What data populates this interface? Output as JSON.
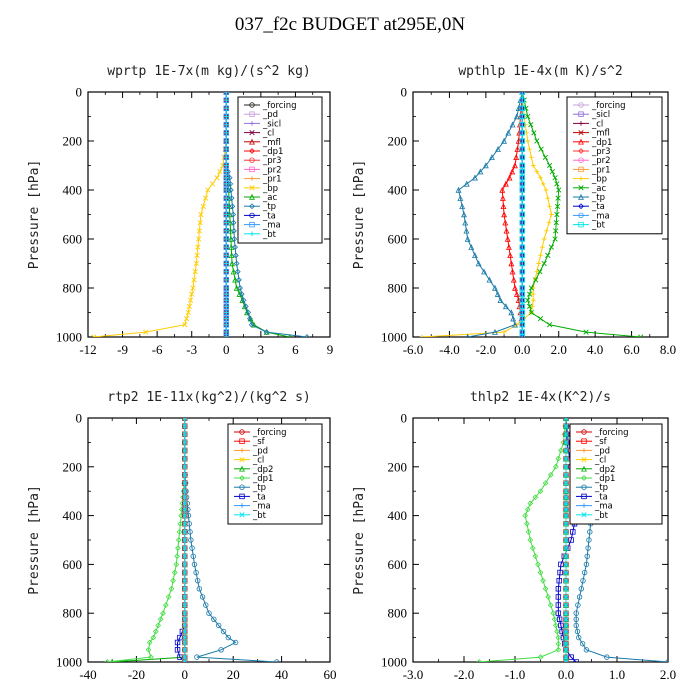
{
  "figure_title": "037_f2c  BUDGET at295E,0N",
  "chart_data": [
    {
      "type": "line",
      "title": "wprtp   1E-7x(m kg)/(s^2 kg)",
      "ylabel": "Pressure [hPa]",
      "xlim": [
        -12,
        9
      ],
      "ylim": [
        0,
        1000
      ],
      "y_inverted": true,
      "xticks": [
        "-12",
        "-9",
        "-6",
        "-3",
        "0",
        "3",
        "6",
        "9"
      ],
      "yticks": [
        "0",
        "200",
        "400",
        "600",
        "800",
        "1000"
      ],
      "legend_position": "top-right",
      "y": [
        0,
        100,
        200,
        300,
        350,
        400,
        500,
        600,
        700,
        800,
        850,
        900,
        950,
        980,
        1000
      ],
      "series": [
        {
          "name": "_forcing",
          "color": "#202020",
          "x": [
            0,
            0,
            0,
            0,
            0,
            0,
            0,
            0,
            0,
            0,
            0,
            0,
            0,
            0,
            0
          ]
        },
        {
          "name": "_pd",
          "color": "#c9a0dc",
          "x": [
            0,
            0,
            0,
            0,
            0,
            0,
            0,
            0,
            0,
            0,
            0,
            0,
            0,
            0,
            0
          ]
        },
        {
          "name": "_sicl",
          "color": "#9370db",
          "x": [
            0,
            0,
            0,
            0,
            0,
            0,
            0,
            0,
            0,
            0,
            0,
            0,
            0,
            0,
            0
          ]
        },
        {
          "name": "_cl",
          "color": "#800040",
          "x": [
            0,
            0,
            0,
            0,
            0,
            0,
            0,
            0,
            0,
            0,
            0,
            0,
            0,
            0,
            0
          ]
        },
        {
          "name": "_mfl",
          "color": "#c00000",
          "x": [
            0,
            0,
            0,
            0,
            0,
            0,
            0,
            0,
            0,
            0,
            0,
            0,
            0,
            0,
            0
          ]
        },
        {
          "name": "_dp1",
          "color": "#ff0000",
          "x": [
            0,
            0,
            0,
            0,
            0,
            0,
            0,
            0,
            0,
            0,
            0,
            0,
            0,
            0,
            0
          ]
        },
        {
          "name": "_pr3",
          "color": "#ff3333",
          "x": [
            0,
            0,
            0,
            0,
            0,
            0,
            0,
            0,
            0,
            0,
            0,
            0,
            0,
            0,
            0
          ]
        },
        {
          "name": "_pr2",
          "color": "#ff66cc",
          "x": [
            0,
            0,
            0,
            0,
            0,
            0,
            0,
            0,
            0,
            0,
            0,
            0,
            0,
            0,
            0
          ]
        },
        {
          "name": "_pr1",
          "color": "#ff9933",
          "x": [
            0,
            0,
            0,
            0,
            0,
            0,
            0,
            0,
            0,
            0,
            0,
            0,
            0,
            0,
            0
          ]
        },
        {
          "name": "_bp",
          "color": "#ffcc00",
          "x": [
            0,
            0,
            0,
            -0.3,
            -0.8,
            -1.6,
            -2.2,
            -2.4,
            -2.6,
            -2.9,
            -3.1,
            -3.3,
            -3.6,
            -7,
            -11.5
          ]
        },
        {
          "name": "_ac",
          "color": "#00aa00",
          "x": [
            0,
            0,
            0,
            0,
            0.1,
            0.2,
            0.3,
            0.4,
            0.5,
            0.9,
            1.4,
            1.8,
            2.4,
            3.5,
            5.5
          ]
        },
        {
          "name": "_tp",
          "color": "#1a7aa8",
          "x": [
            0,
            0,
            0,
            0,
            0.3,
            0.4,
            0.6,
            0.7,
            0.9,
            1.2,
            1.5,
            1.9,
            2.2,
            3.5,
            7
          ]
        },
        {
          "name": "_ta",
          "color": "#0000cc",
          "x": [
            0,
            0,
            0,
            0,
            0,
            0,
            0,
            0,
            0,
            0,
            0,
            0,
            0,
            0,
            0
          ]
        },
        {
          "name": "_ma",
          "color": "#3399ff",
          "x": [
            0,
            0,
            0,
            0,
            0,
            0,
            0,
            0,
            0,
            0,
            0,
            0,
            0,
            0,
            0
          ]
        },
        {
          "name": "_bt",
          "color": "#00e5ee",
          "x": [
            0,
            0,
            0,
            0,
            0,
            0,
            0,
            0,
            0,
            0,
            0,
            0,
            0,
            0,
            0
          ]
        }
      ]
    },
    {
      "type": "line",
      "title": "wpthlp   1E-4x(m K)/s^2",
      "ylabel": "Pressure [hPa]",
      "xlim": [
        -6,
        8
      ],
      "ylim": [
        0,
        1000
      ],
      "y_inverted": true,
      "xticks": [
        "-6.0",
        "-4.0",
        "-2.0",
        "0.0",
        "2.0",
        "4.0",
        "6.0",
        "8.0"
      ],
      "yticks": [
        "0",
        "200",
        "400",
        "600",
        "800",
        "1000"
      ],
      "legend_position": "top-right",
      "y": [
        0,
        100,
        200,
        300,
        350,
        400,
        500,
        600,
        700,
        800,
        850,
        900,
        950,
        980,
        1000
      ],
      "series": [
        {
          "name": "_forcing",
          "color": "#c9a0dc",
          "x": [
            0,
            0,
            0,
            0,
            0,
            0,
            0,
            0,
            0,
            0,
            0,
            0,
            0,
            0,
            0
          ]
        },
        {
          "name": "_sicl",
          "color": "#9370db",
          "x": [
            0,
            0,
            0,
            0,
            0,
            0,
            0,
            0,
            0,
            0,
            0,
            0,
            0,
            0,
            0
          ]
        },
        {
          "name": "_cl",
          "color": "#800040",
          "x": [
            0,
            0,
            0,
            0,
            0,
            0,
            0,
            0,
            0,
            0,
            0,
            0,
            0,
            0,
            0
          ]
        },
        {
          "name": "_mfl",
          "color": "#c00000",
          "x": [
            0,
            0,
            0,
            0,
            0,
            0,
            0,
            0,
            0,
            0,
            0,
            0,
            0,
            0,
            0
          ]
        },
        {
          "name": "_dp1",
          "color": "#ff0000",
          "x": [
            0,
            -0.1,
            -0.2,
            -0.4,
            -0.7,
            -1.1,
            -1.0,
            -0.8,
            -0.6,
            -0.4,
            -0.2,
            -0.1,
            0,
            0,
            0
          ]
        },
        {
          "name": "_pr3",
          "color": "#ff3333",
          "x": [
            0,
            0,
            0,
            0,
            0,
            0,
            0,
            0,
            0,
            0,
            0,
            0,
            0,
            0,
            0
          ]
        },
        {
          "name": "_pr2",
          "color": "#ff66cc",
          "x": [
            0,
            0,
            0,
            0,
            0,
            0,
            0,
            0,
            0,
            0,
            0,
            0,
            0,
            0,
            0
          ]
        },
        {
          "name": "_pr1",
          "color": "#ff9933",
          "x": [
            0,
            0,
            0,
            0,
            0,
            0,
            0,
            0,
            0,
            0,
            0,
            0,
            0,
            0,
            0
          ]
        },
        {
          "name": "_bp",
          "color": "#ffcc00",
          "x": [
            0,
            0.1,
            0.3,
            0.6,
            1.0,
            1.3,
            1.6,
            1.2,
            0.9,
            0.6,
            0.6,
            0.5,
            -0.3,
            -1.0,
            -5.5
          ]
        },
        {
          "name": "_ac",
          "color": "#00aa00",
          "x": [
            0,
            0.3,
            0.8,
            1.5,
            1.8,
            2.0,
            1.9,
            1.8,
            1.2,
            0.5,
            0.3,
            0.5,
            1.5,
            3.5,
            6.5
          ]
        },
        {
          "name": "_tp",
          "color": "#1a7aa8",
          "x": [
            0,
            -0.3,
            -1.0,
            -2.0,
            -2.6,
            -3.5,
            -3.2,
            -3.0,
            -2.4,
            -1.5,
            -1.2,
            -0.6,
            -0.4,
            -1.5,
            -3.0
          ]
        },
        {
          "name": "_ta",
          "color": "#0000cc",
          "x": [
            0,
            0,
            0,
            0,
            0,
            0,
            0,
            0,
            0,
            0,
            0,
            0,
            0,
            0,
            0
          ]
        },
        {
          "name": "_ma",
          "color": "#3399ff",
          "x": [
            0,
            0,
            0,
            0,
            0,
            0,
            0,
            0,
            0,
            0,
            0,
            0,
            0,
            0,
            0
          ]
        },
        {
          "name": "_bt",
          "color": "#00e5ee",
          "x": [
            0,
            0,
            0,
            0,
            0,
            0,
            0,
            0,
            0,
            0,
            0,
            0,
            0,
            0,
            0
          ]
        }
      ]
    },
    {
      "type": "line",
      "title": "rtp2   1E-11x(kg^2)/(kg^2 s)",
      "ylabel": "Pressure [hPa]",
      "xlim": [
        -40,
        60
      ],
      "ylim": [
        0,
        1000
      ],
      "y_inverted": true,
      "xticks": [
        "-40",
        "-20",
        "0",
        "20",
        "40",
        "60"
      ],
      "yticks": [
        "0",
        "200",
        "400",
        "600",
        "800",
        "1000"
      ],
      "legend_position": "top-right",
      "y": [
        0,
        100,
        200,
        300,
        350,
        400,
        500,
        600,
        700,
        800,
        850,
        900,
        920,
        950,
        980,
        1000
      ],
      "series": [
        {
          "name": "_forcing",
          "color": "#cc0000",
          "x": [
            0,
            0,
            0,
            0,
            0,
            0,
            0,
            0,
            0,
            0,
            0,
            0,
            0,
            0,
            0,
            0
          ]
        },
        {
          "name": "_sf",
          "color": "#ff0000",
          "x": [
            0,
            0,
            0,
            0,
            0,
            0,
            0,
            0,
            0,
            0,
            0,
            0,
            0,
            0,
            0,
            0
          ]
        },
        {
          "name": "_pd",
          "color": "#ff9933",
          "x": [
            0,
            0,
            0,
            0,
            0,
            0,
            0,
            0,
            0,
            0,
            0,
            0,
            0,
            0,
            0,
            0
          ]
        },
        {
          "name": "_cl",
          "color": "#ffcc00",
          "x": [
            0,
            0,
            0,
            0,
            0,
            0,
            0,
            0,
            0,
            0,
            0,
            0,
            0,
            0,
            0,
            0
          ]
        },
        {
          "name": "_dp2",
          "color": "#00aa00",
          "x": [
            0,
            0,
            0,
            0,
            0,
            0,
            0,
            0,
            0,
            0,
            0,
            0,
            0,
            0,
            0,
            -30
          ]
        },
        {
          "name": "_dp1",
          "color": "#44dd44",
          "x": [
            0,
            0,
            0,
            -0.5,
            -1,
            -1.5,
            -2.5,
            -3.5,
            -5.5,
            -9,
            -11,
            -13,
            -14.5,
            -15,
            -14,
            -32
          ]
        },
        {
          "name": "_tp",
          "color": "#1a7aa8",
          "x": [
            0,
            0,
            0,
            0.5,
            1,
            1.5,
            2.5,
            4,
            6,
            10,
            14,
            18,
            21,
            15,
            5,
            38
          ]
        },
        {
          "name": "_ta",
          "color": "#0000cc",
          "x": [
            0,
            0,
            0,
            0,
            0,
            0,
            0,
            0,
            0,
            0,
            0,
            -2,
            -3,
            -3,
            -2,
            0
          ]
        },
        {
          "name": "_ma",
          "color": "#3399ff",
          "x": [
            0,
            0,
            0,
            0,
            0,
            0,
            0,
            0,
            0,
            0,
            0,
            0,
            0,
            0,
            0,
            0
          ]
        },
        {
          "name": "_bt",
          "color": "#00e5ee",
          "x": [
            0,
            0,
            0,
            0,
            0,
            0,
            0,
            0,
            0,
            0,
            0,
            0,
            0,
            0,
            0,
            0
          ]
        }
      ]
    },
    {
      "type": "line",
      "title": "thlp2   1E-4x(K^2)/s",
      "ylabel": "Pressure [hPa]",
      "xlim": [
        -3,
        2
      ],
      "ylim": [
        0,
        1000
      ],
      "y_inverted": true,
      "xticks": [
        "-3.0",
        "-2.0",
        "-1.0",
        "0.0",
        "1.0",
        "2.0"
      ],
      "yticks": [
        "0",
        "200",
        "400",
        "600",
        "800",
        "1000"
      ],
      "legend_position": "top-right",
      "y": [
        0,
        100,
        200,
        300,
        350,
        400,
        500,
        600,
        700,
        800,
        850,
        900,
        950,
        980,
        1000
      ],
      "series": [
        {
          "name": "_forcing",
          "color": "#cc0000",
          "x": [
            0,
            0,
            0,
            0,
            0,
            0,
            0,
            0,
            0,
            0,
            0,
            0,
            0,
            0,
            0
          ]
        },
        {
          "name": "_sf",
          "color": "#ff0000",
          "x": [
            0,
            0,
            0,
            0,
            0,
            0,
            0,
            0,
            0,
            0,
            0,
            0,
            0,
            0,
            0
          ]
        },
        {
          "name": "_pd",
          "color": "#ff9933",
          "x": [
            0,
            0,
            0,
            0,
            0,
            0,
            0,
            0,
            0,
            0,
            0,
            0,
            0,
            0,
            0
          ]
        },
        {
          "name": "_cl",
          "color": "#ffcc00",
          "x": [
            0,
            0,
            0,
            0,
            0,
            0,
            0,
            0,
            0,
            0,
            0,
            0,
            0,
            0,
            0
          ]
        },
        {
          "name": "_dp2",
          "color": "#00aa00",
          "x": [
            0,
            0,
            0,
            0,
            0,
            0,
            0,
            0,
            0,
            0,
            0,
            0,
            0,
            0,
            0
          ]
        },
        {
          "name": "_dp1",
          "color": "#44dd44",
          "x": [
            0,
            -0.05,
            -0.2,
            -0.5,
            -0.7,
            -0.8,
            -0.7,
            -0.55,
            -0.4,
            -0.25,
            -0.2,
            -0.15,
            -0.15,
            -0.5,
            -1.7
          ]
        },
        {
          "name": "_tp",
          "color": "#1a7aa8",
          "x": [
            0,
            0.05,
            0.15,
            0.3,
            0.4,
            0.5,
            0.45,
            0.4,
            0.3,
            0.2,
            0.2,
            0.25,
            0.4,
            0.8,
            2.0
          ]
        },
        {
          "name": "_ta",
          "color": "#0000cc",
          "x": [
            0,
            0.02,
            0.1,
            0.2,
            0.25,
            0.2,
            0.1,
            -0.1,
            -0.15,
            -0.15,
            -0.1,
            -0.05,
            0,
            0.1,
            0.2
          ]
        },
        {
          "name": "_ma",
          "color": "#3399ff",
          "x": [
            0,
            0,
            0,
            0,
            0,
            0,
            0,
            0,
            0,
            0,
            0,
            0,
            0,
            0,
            0
          ]
        },
        {
          "name": "_bt",
          "color": "#00e5ee",
          "x": [
            0,
            0,
            0,
            0,
            0,
            0,
            0,
            0,
            0,
            0,
            0,
            0,
            0,
            0,
            0
          ]
        }
      ]
    }
  ]
}
